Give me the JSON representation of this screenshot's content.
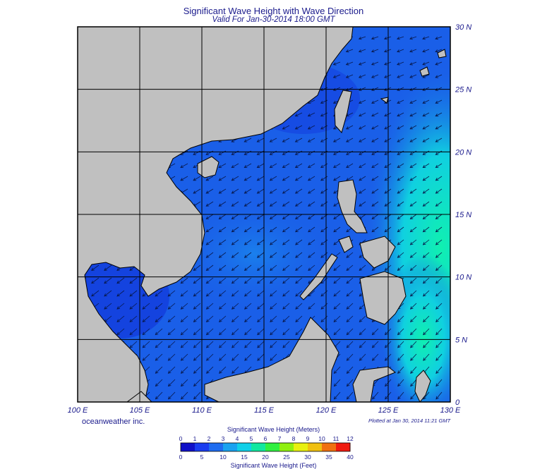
{
  "header": {
    "title": "Significant Wave Height with Wave Direction",
    "subtitle": "Valid For Jan-30-2014 18:00 GMT"
  },
  "map": {
    "lon_labels": [
      "100 E",
      "105 E",
      "110 E",
      "115 E",
      "120 E",
      "125 E",
      "130 E"
    ],
    "lat_labels": [
      "0",
      "5 N",
      "10 N",
      "15 N",
      "20 N",
      "25 N",
      "30 N"
    ],
    "water_color": "#1a5fe8",
    "land_color": "#c0c0c0",
    "grid_color": "#000000"
  },
  "footer": {
    "brand": "oceanweather inc.",
    "plotted": "Plotted at Jan 30, 2014 11:21 GMT"
  },
  "colorbar": {
    "title_meters": "Significant Wave Height (Meters)",
    "title_feet": "Significant Wave Height (Feet)",
    "meters_ticks": [
      "0",
      "1",
      "2",
      "3",
      "4",
      "5",
      "6",
      "7",
      "8",
      "9",
      "10",
      "11",
      "12"
    ],
    "feet_ticks": [
      "0",
      "5",
      "10",
      "15",
      "20",
      "25",
      "30",
      "35",
      "40"
    ],
    "colors": [
      "#1010c8",
      "#1a3cf0",
      "#1e6cf0",
      "#19a2f0",
      "#10d0e8",
      "#10e8a0",
      "#30f040",
      "#90f010",
      "#e8f010",
      "#f0c010",
      "#f07010",
      "#f01a10"
    ]
  }
}
